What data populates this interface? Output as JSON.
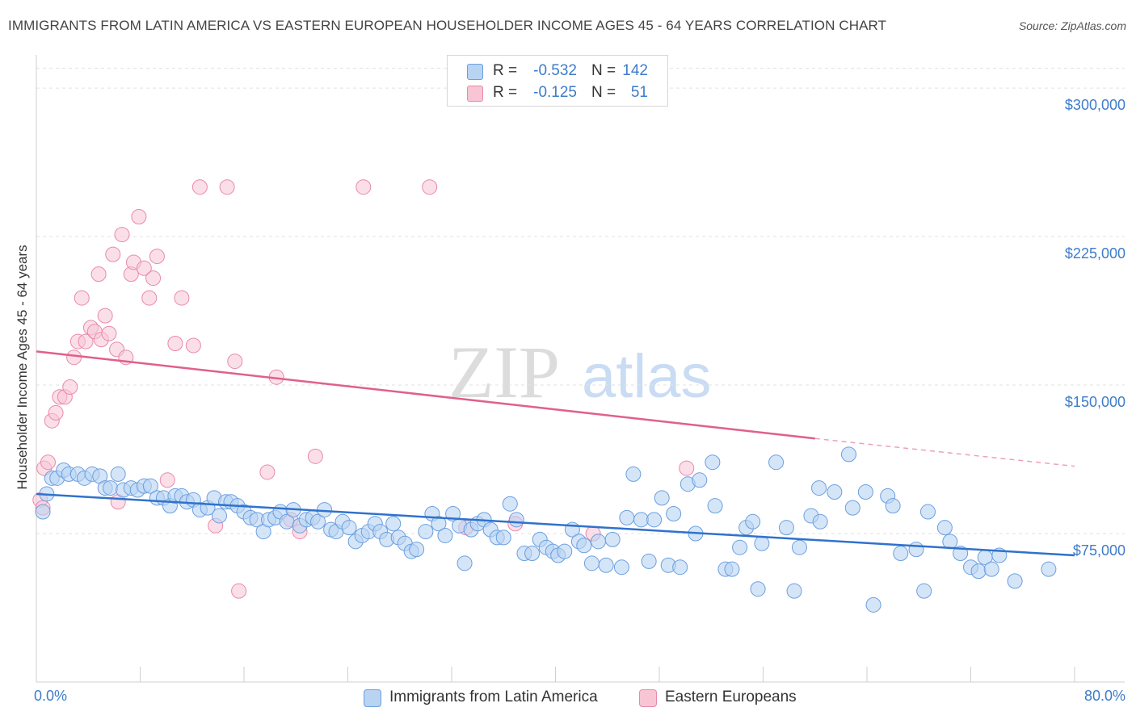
{
  "title": "IMMIGRANTS FROM LATIN AMERICA VS EASTERN EUROPEAN HOUSEHOLDER INCOME AGES 45 - 64 YEARS CORRELATION CHART",
  "source": "Source: ZipAtlas.com",
  "watermark": {
    "zip": "ZIP",
    "atlas": "atlas"
  },
  "legend": {
    "rows": [
      {
        "r_label": "R =",
        "r_value": "-0.532",
        "n_label": "N =",
        "n_value": "142"
      },
      {
        "r_label": "R =",
        "r_value": "-0.125",
        "n_label": "N =",
        "n_value": "51"
      }
    ]
  },
  "bottom_legend": {
    "series1": "Immigrants from Latin America",
    "series2": "Eastern Europeans"
  },
  "colors": {
    "blue_fill": "#b9d3f3",
    "blue_stroke": "#6a9fe0",
    "blue_line": "#2f72cc",
    "pink_fill": "#f8c5d5",
    "pink_stroke": "#e88aa8",
    "pink_line": "#e0608a",
    "axis_text": "#3d7cc9"
  },
  "chart_data": {
    "type": "scatter",
    "title": "IMMIGRANTS FROM LATIN AMERICA VS EASTERN EUROPEAN HOUSEHOLDER INCOME AGES 45 - 64 YEARS CORRELATION CHART",
    "xlabel": "",
    "ylabel": "Householder Income Ages 45 - 64 years",
    "xlim": [
      0,
      80
    ],
    "ylim": [
      0,
      320000
    ],
    "x_tick_labels": [
      "0.0%",
      "80.0%"
    ],
    "y_ticks": [
      75000,
      150000,
      225000,
      300000
    ],
    "y_tick_labels": [
      "$75,000",
      "$150,000",
      "$225,000",
      "$300,000"
    ],
    "grid": true,
    "legend_position": "top-center",
    "series": [
      {
        "name": "Immigrants from Latin America",
        "r": -0.532,
        "n": 142,
        "trend": {
          "x": [
            0,
            80
          ],
          "y": [
            95000,
            64000
          ]
        },
        "points": [
          [
            0.5,
            86000
          ],
          [
            0.8,
            95000
          ],
          [
            1.2,
            103000
          ],
          [
            1.6,
            103000
          ],
          [
            2.1,
            107000
          ],
          [
            2.5,
            105000
          ],
          [
            3.2,
            105000
          ],
          [
            3.7,
            103000
          ],
          [
            4.3,
            105000
          ],
          [
            4.9,
            104000
          ],
          [
            5.3,
            98000
          ],
          [
            5.7,
            98000
          ],
          [
            6.3,
            105000
          ],
          [
            6.7,
            97000
          ],
          [
            7.3,
            98000
          ],
          [
            7.8,
            97000
          ],
          [
            8.3,
            99000
          ],
          [
            8.8,
            99000
          ],
          [
            9.3,
            93000
          ],
          [
            9.8,
            93000
          ],
          [
            10.3,
            89000
          ],
          [
            10.7,
            94000
          ],
          [
            11.2,
            94000
          ],
          [
            11.6,
            91000
          ],
          [
            12.1,
            92000
          ],
          [
            12.6,
            87000
          ],
          [
            13.2,
            88000
          ],
          [
            13.7,
            93000
          ],
          [
            14.1,
            84000
          ],
          [
            14.6,
            91000
          ],
          [
            15.0,
            91000
          ],
          [
            15.5,
            89000
          ],
          [
            16.0,
            86000
          ],
          [
            16.5,
            83000
          ],
          [
            17.0,
            82000
          ],
          [
            17.5,
            76000
          ],
          [
            17.9,
            82000
          ],
          [
            18.4,
            83000
          ],
          [
            18.8,
            86000
          ],
          [
            19.3,
            81000
          ],
          [
            19.8,
            87000
          ],
          [
            20.3,
            79000
          ],
          [
            20.8,
            82000
          ],
          [
            21.3,
            83000
          ],
          [
            21.7,
            81000
          ],
          [
            22.2,
            87000
          ],
          [
            22.7,
            77000
          ],
          [
            23.1,
            76000
          ],
          [
            23.6,
            81000
          ],
          [
            24.1,
            78000
          ],
          [
            24.6,
            71000
          ],
          [
            25.1,
            74000
          ],
          [
            25.6,
            76000
          ],
          [
            26.1,
            80000
          ],
          [
            26.5,
            76000
          ],
          [
            27.0,
            72000
          ],
          [
            27.5,
            80000
          ],
          [
            27.9,
            73000
          ],
          [
            28.4,
            70000
          ],
          [
            28.9,
            66000
          ],
          [
            29.3,
            67000
          ],
          [
            30.0,
            76000
          ],
          [
            30.5,
            85000
          ],
          [
            31.0,
            80000
          ],
          [
            31.5,
            74000
          ],
          [
            32.1,
            85000
          ],
          [
            32.6,
            79000
          ],
          [
            33.0,
            60000
          ],
          [
            33.5,
            77000
          ],
          [
            34.0,
            80000
          ],
          [
            34.5,
            82000
          ],
          [
            35.0,
            77000
          ],
          [
            35.5,
            73000
          ],
          [
            36.0,
            73000
          ],
          [
            36.5,
            90000
          ],
          [
            37.0,
            82000
          ],
          [
            37.6,
            65000
          ],
          [
            38.2,
            65000
          ],
          [
            38.8,
            72000
          ],
          [
            39.3,
            68000
          ],
          [
            39.8,
            66000
          ],
          [
            40.2,
            64000
          ],
          [
            40.7,
            66000
          ],
          [
            41.3,
            77000
          ],
          [
            41.8,
            71000
          ],
          [
            42.2,
            69000
          ],
          [
            42.8,
            60000
          ],
          [
            43.3,
            71000
          ],
          [
            43.9,
            59000
          ],
          [
            44.4,
            72000
          ],
          [
            45.1,
            58000
          ],
          [
            45.5,
            83000
          ],
          [
            46.0,
            105000
          ],
          [
            46.6,
            82000
          ],
          [
            47.2,
            61000
          ],
          [
            47.6,
            82000
          ],
          [
            48.2,
            93000
          ],
          [
            48.7,
            59000
          ],
          [
            49.1,
            85000
          ],
          [
            49.6,
            58000
          ],
          [
            50.2,
            100000
          ],
          [
            50.8,
            75000
          ],
          [
            51.1,
            102000
          ],
          [
            52.1,
            111000
          ],
          [
            52.3,
            89000
          ],
          [
            53.1,
            57000
          ],
          [
            53.6,
            57000
          ],
          [
            54.2,
            68000
          ],
          [
            54.7,
            78000
          ],
          [
            55.2,
            81000
          ],
          [
            55.6,
            47000
          ],
          [
            55.9,
            70000
          ],
          [
            57.0,
            111000
          ],
          [
            57.8,
            78000
          ],
          [
            58.4,
            46000
          ],
          [
            58.8,
            68000
          ],
          [
            59.7,
            84000
          ],
          [
            60.3,
            98000
          ],
          [
            60.4,
            81000
          ],
          [
            61.5,
            96000
          ],
          [
            62.6,
            115000
          ],
          [
            62.9,
            88000
          ],
          [
            63.9,
            96000
          ],
          [
            64.5,
            39000
          ],
          [
            65.6,
            94000
          ],
          [
            66.0,
            89000
          ],
          [
            66.6,
            65000
          ],
          [
            67.8,
            67000
          ],
          [
            68.4,
            46000
          ],
          [
            68.7,
            86000
          ],
          [
            70.0,
            78000
          ],
          [
            70.4,
            71000
          ],
          [
            71.2,
            65000
          ],
          [
            72.0,
            58000
          ],
          [
            72.6,
            56000
          ],
          [
            73.1,
            63000
          ],
          [
            73.6,
            57000
          ],
          [
            74.2,
            64000
          ],
          [
            75.4,
            51000
          ],
          [
            78.0,
            57000
          ]
        ]
      },
      {
        "name": "Eastern Europeans",
        "r": -0.125,
        "n": 51,
        "trend": {
          "x": [
            0,
            60
          ],
          "y": [
            167000,
            123000
          ]
        },
        "trend_dashed": {
          "x": [
            60,
            80
          ],
          "y": [
            123000,
            109000
          ]
        },
        "points": [
          [
            0.3,
            92000
          ],
          [
            0.5,
            88000
          ],
          [
            0.6,
            108000
          ],
          [
            0.9,
            111000
          ],
          [
            1.2,
            132000
          ],
          [
            1.5,
            136000
          ],
          [
            1.8,
            144000
          ],
          [
            2.2,
            144000
          ],
          [
            2.6,
            149000
          ],
          [
            2.9,
            164000
          ],
          [
            3.2,
            172000
          ],
          [
            3.5,
            194000
          ],
          [
            3.8,
            172000
          ],
          [
            4.2,
            179000
          ],
          [
            4.5,
            177000
          ],
          [
            4.8,
            206000
          ],
          [
            5.0,
            173000
          ],
          [
            5.3,
            185000
          ],
          [
            5.6,
            176000
          ],
          [
            5.9,
            216000
          ],
          [
            6.2,
            168000
          ],
          [
            6.6,
            226000
          ],
          [
            6.9,
            164000
          ],
          [
            7.3,
            206000
          ],
          [
            7.5,
            212000
          ],
          [
            7.9,
            235000
          ],
          [
            8.3,
            209000
          ],
          [
            8.7,
            194000
          ],
          [
            9.0,
            204000
          ],
          [
            9.3,
            215000
          ],
          [
            10.1,
            102000
          ],
          [
            10.7,
            171000
          ],
          [
            11.2,
            194000
          ],
          [
            12.1,
            170000
          ],
          [
            12.6,
            250000
          ],
          [
            13.8,
            79000
          ],
          [
            14.7,
            250000
          ],
          [
            15.3,
            162000
          ],
          [
            15.6,
            46000
          ],
          [
            17.8,
            106000
          ],
          [
            18.5,
            154000
          ],
          [
            19.6,
            82000
          ],
          [
            20.3,
            76000
          ],
          [
            21.5,
            114000
          ],
          [
            25.2,
            250000
          ],
          [
            30.3,
            250000
          ],
          [
            33.1,
            78000
          ],
          [
            36.9,
            80000
          ],
          [
            42.9,
            75000
          ],
          [
            50.1,
            108000
          ],
          [
            6.3,
            91000
          ]
        ]
      }
    ]
  }
}
